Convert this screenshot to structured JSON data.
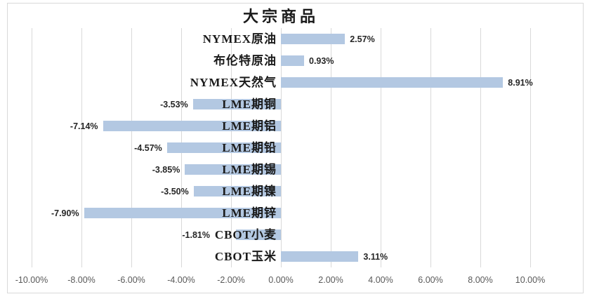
{
  "chart": {
    "colors": {
      "bar": "#B3C8E2",
      "gridline": "#D9D9D9",
      "border": "#D9D9D9",
      "tick_text": "#595959",
      "value_text": "#262626",
      "category_text": "#1A1A1A"
    }
  },
  "chart_data": {
    "type": "bar",
    "orientation": "horizontal",
    "title": "大宗商品",
    "categories": [
      "NYMEX原油",
      "布伦特原油",
      "NYMEX天然气",
      "LME期铜",
      "LME期铝",
      "LME期铅",
      "LME期锡",
      "LME期镍",
      "LME期锌",
      "CBOT小麦",
      "CBOT玉米"
    ],
    "values": [
      2.57,
      0.93,
      8.91,
      -3.53,
      -7.14,
      -4.57,
      -3.85,
      -3.5,
      -7.9,
      -1.81,
      3.11
    ],
    "value_labels": [
      "2.57%",
      "0.93%",
      "8.91%",
      "-3.53%",
      "-7.14%",
      "-4.57%",
      "-3.85%",
      "-3.50%",
      "-7.90%",
      "-1.81%",
      "3.11%"
    ],
    "x_ticks": [
      "-10.00%",
      "-8.00%",
      "-6.00%",
      "-4.00%",
      "-2.00%",
      "0.00%",
      "2.00%",
      "4.00%",
      "6.00%",
      "8.00%",
      "10.00%"
    ],
    "x_tick_values": [
      -10,
      -8,
      -6,
      -4,
      -2,
      0,
      2,
      4,
      6,
      8,
      10
    ],
    "xlim": [
      -10,
      10
    ],
    "xlabel": "",
    "ylabel": "",
    "grid": true,
    "legend": false
  }
}
